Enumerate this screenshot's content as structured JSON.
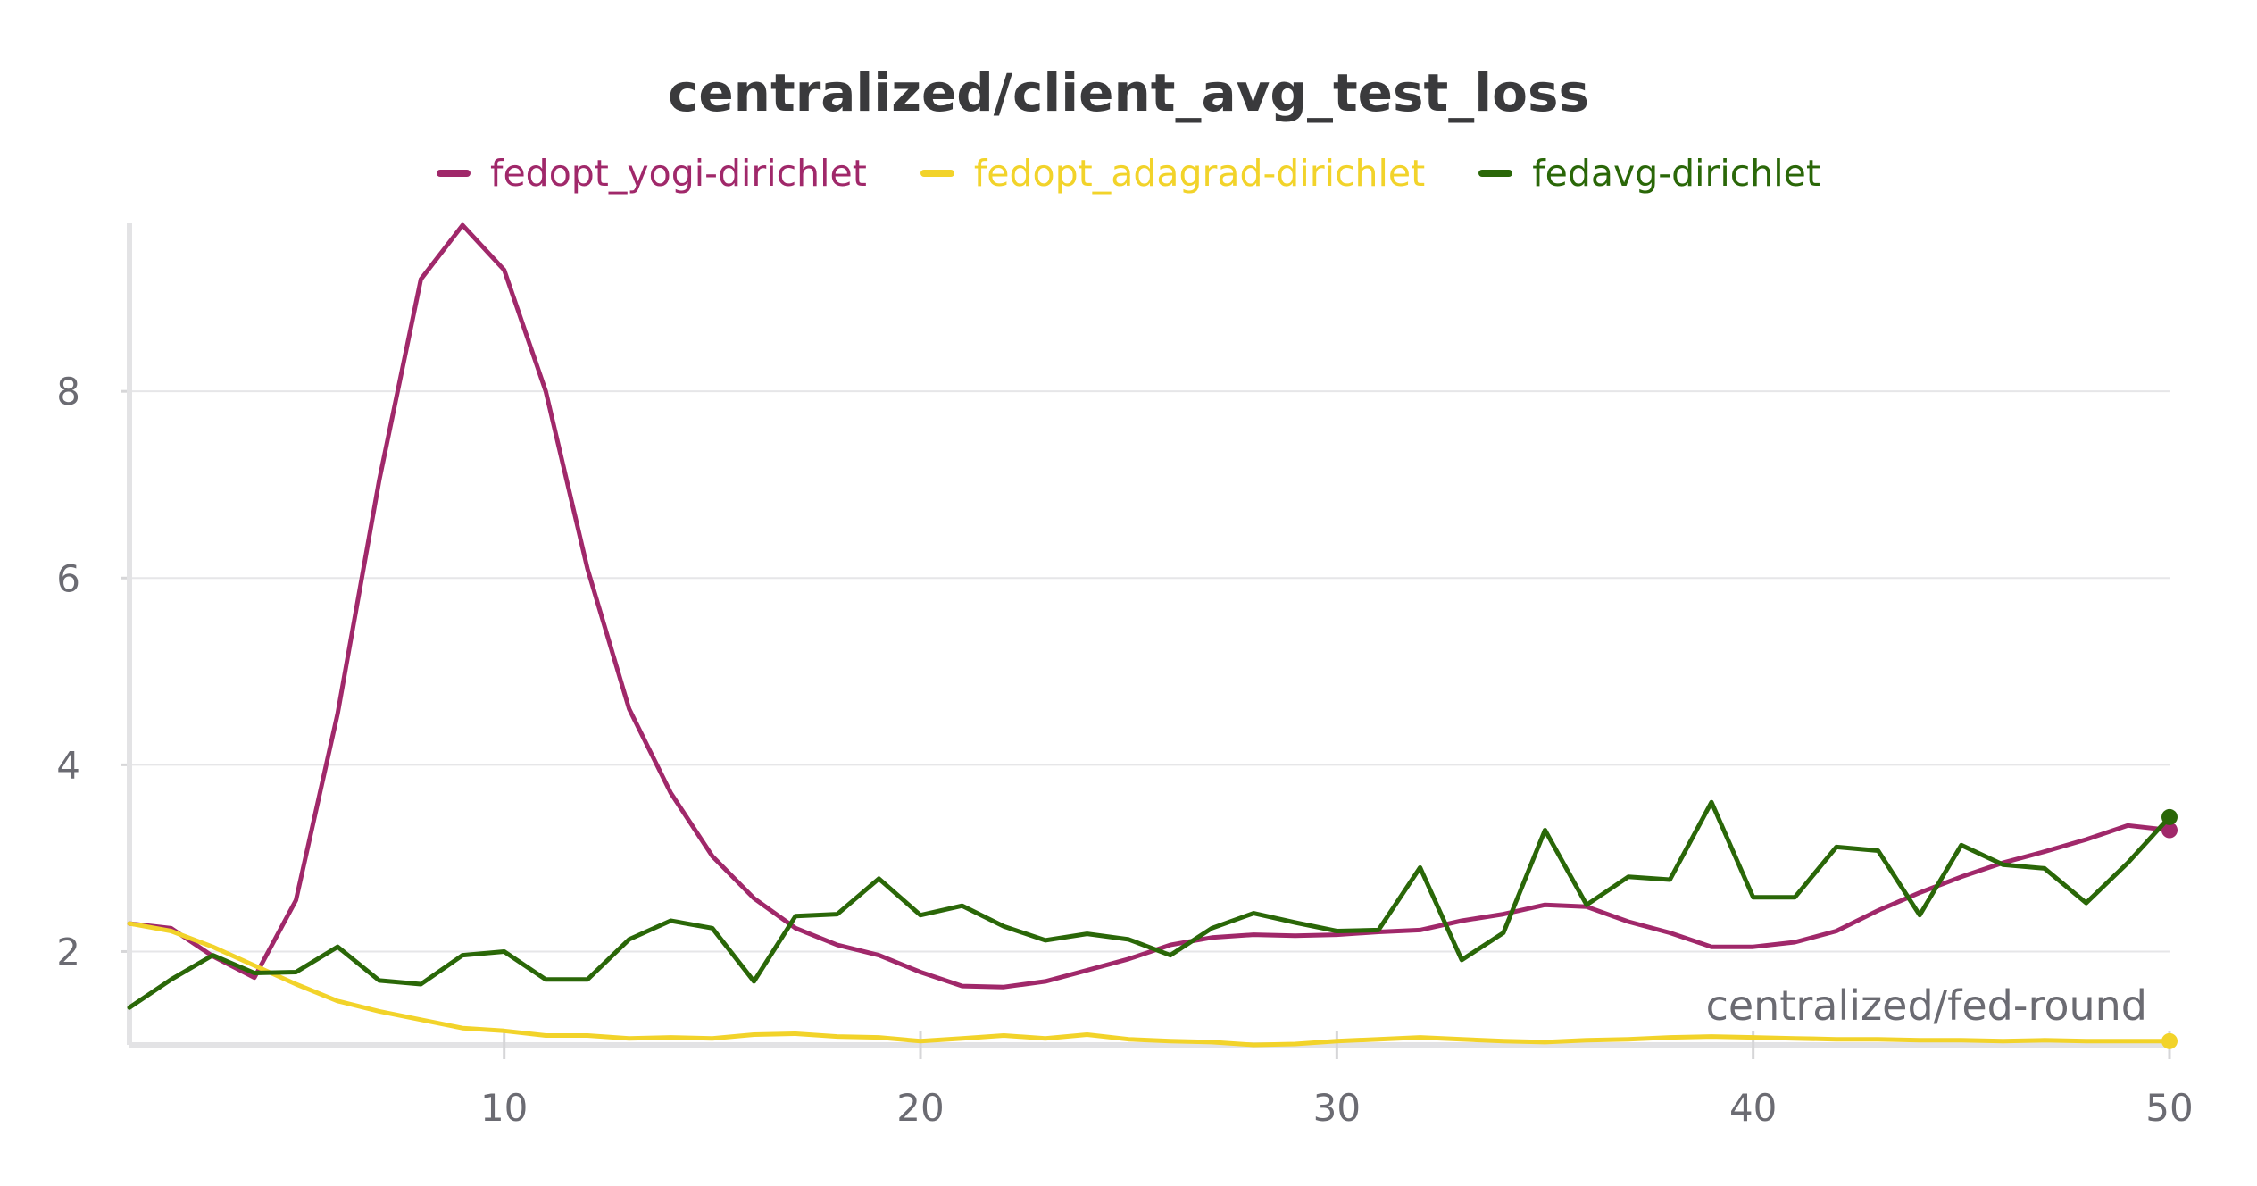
{
  "chart_data": {
    "type": "line",
    "title": "centralized/client_avg_test_loss",
    "xlabel": "centralized/fed-round",
    "ylabel": "",
    "xlim": [
      1,
      50
    ],
    "ylim": [
      1,
      9.8
    ],
    "xticks": [
      10,
      20,
      30,
      40,
      50
    ],
    "yticks": [
      2,
      4,
      6,
      8
    ],
    "legend_position": "top-center",
    "grid": true,
    "x": [
      1,
      2,
      3,
      4,
      5,
      6,
      7,
      8,
      9,
      10,
      11,
      12,
      13,
      14,
      15,
      16,
      17,
      18,
      19,
      20,
      21,
      22,
      23,
      24,
      25,
      26,
      27,
      28,
      29,
      30,
      31,
      32,
      33,
      34,
      35,
      36,
      37,
      38,
      39,
      40,
      41,
      42,
      43,
      44,
      45,
      46,
      47,
      48,
      49,
      50
    ],
    "series": [
      {
        "name": "fedopt_yogi-dirichlet",
        "color": "#a0286a",
        "values": [
          2.3,
          2.25,
          1.95,
          1.72,
          2.55,
          4.55,
          7.05,
          9.2,
          9.78,
          9.3,
          8.0,
          6.1,
          4.6,
          3.7,
          3.02,
          2.57,
          2.25,
          2.07,
          1.96,
          1.78,
          1.63,
          1.62,
          1.68,
          1.8,
          1.92,
          2.07,
          2.15,
          2.18,
          2.17,
          2.18,
          2.21,
          2.23,
          2.33,
          2.4,
          2.5,
          2.48,
          2.32,
          2.2,
          2.05,
          2.05,
          2.1,
          2.22,
          2.44,
          2.63,
          2.8,
          2.95,
          3.07,
          3.2,
          3.35,
          3.3
        ]
      },
      {
        "name": "fedopt_adagrad-dirichlet",
        "color": "#f2d32a",
        "values": [
          2.3,
          2.22,
          2.05,
          1.85,
          1.65,
          1.47,
          1.36,
          1.27,
          1.18,
          1.15,
          1.1,
          1.1,
          1.07,
          1.08,
          1.07,
          1.11,
          1.12,
          1.09,
          1.08,
          1.04,
          1.07,
          1.1,
          1.07,
          1.11,
          1.06,
          1.04,
          1.03,
          1.0,
          1.01,
          1.04,
          1.06,
          1.08,
          1.06,
          1.04,
          1.03,
          1.05,
          1.06,
          1.08,
          1.09,
          1.08,
          1.07,
          1.06,
          1.06,
          1.05,
          1.05,
          1.04,
          1.05,
          1.04,
          1.04,
          1.04
        ]
      },
      {
        "name": "fedavg-dirichlet",
        "color": "#2a6708",
        "values": [
          1.4,
          1.7,
          1.96,
          1.77,
          1.78,
          2.05,
          1.69,
          1.65,
          1.96,
          2.0,
          1.7,
          1.7,
          2.13,
          2.33,
          2.25,
          1.68,
          2.38,
          2.4,
          2.78,
          2.39,
          2.49,
          2.27,
          2.12,
          2.19,
          2.13,
          1.96,
          2.25,
          2.41,
          2.31,
          2.22,
          2.23,
          2.9,
          1.91,
          2.2,
          3.3,
          2.5,
          2.8,
          2.77,
          3.6,
          2.58,
          2.58,
          3.12,
          3.08,
          2.39,
          3.14,
          2.93,
          2.89,
          2.52,
          2.95,
          3.44
        ]
      }
    ]
  }
}
